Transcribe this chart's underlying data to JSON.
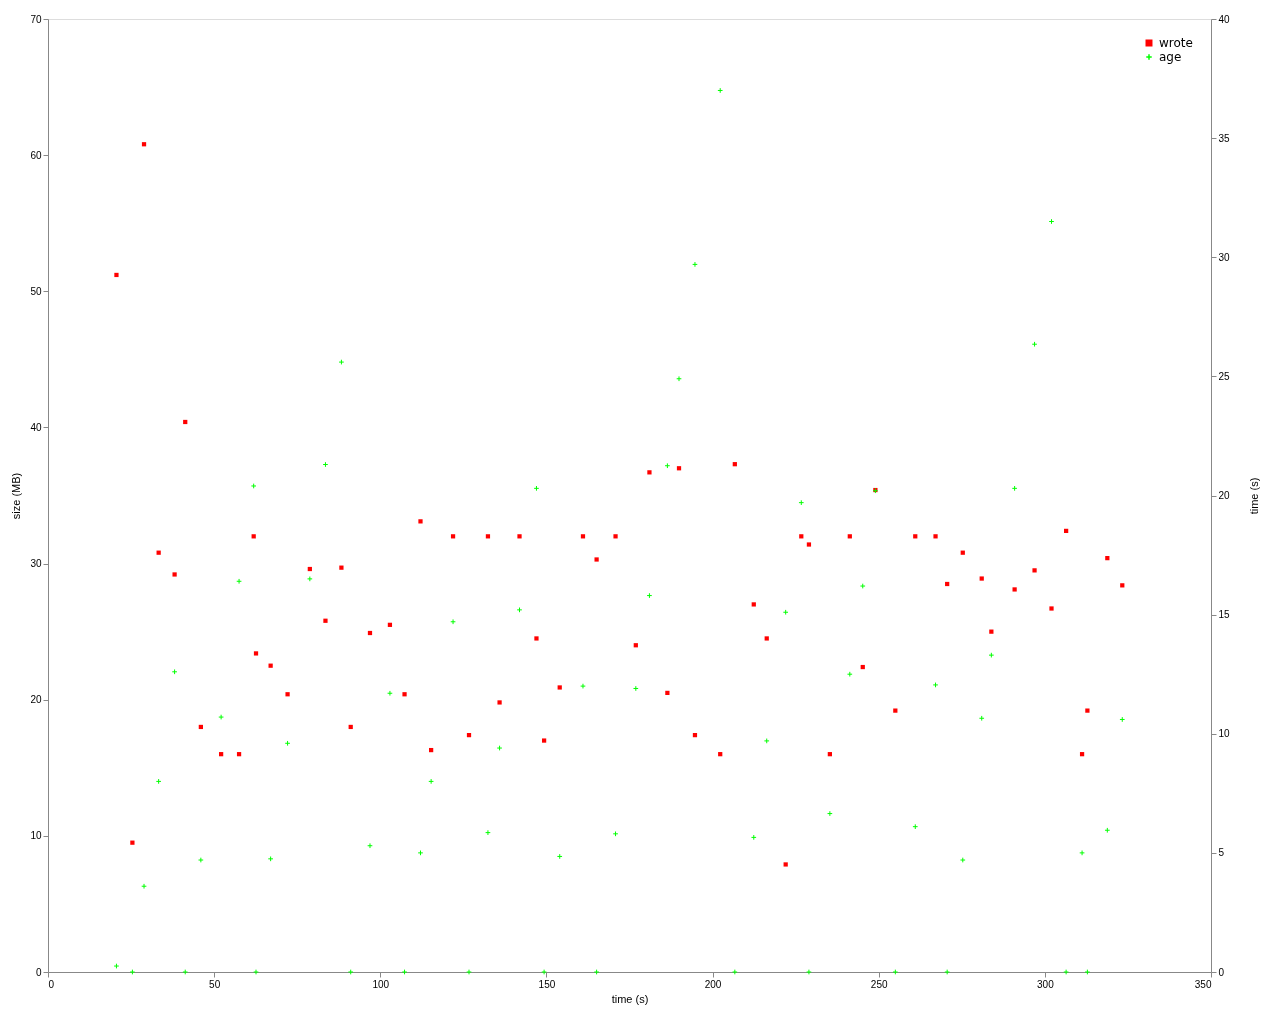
{
  "chart_data": {
    "type": "scatter",
    "xlabel": "time (s)",
    "ylabel": "size (MB)",
    "y2label": "time (s)",
    "x": [
      20.6,
      25.4,
      28.9,
      33.3,
      38.1,
      41.3,
      46.0,
      52.1,
      57.5,
      61.9,
      62.6,
      67.0,
      72.1,
      78.8,
      83.5,
      88.3,
      91.1,
      96.9,
      102.9,
      107.3,
      112.1,
      115.3,
      121.9,
      126.7,
      132.4,
      135.9,
      141.9,
      147.0,
      149.3,
      154.0,
      161.0,
      165.1,
      170.8,
      176.9,
      181.0,
      186.4,
      189.9,
      194.7,
      202.3,
      206.7,
      212.4,
      216.3,
      222.0,
      226.7,
      229.0,
      235.3,
      241.3,
      245.2,
      249.0,
      255.0,
      261.0,
      267.1,
      270.6,
      275.3,
      281.0,
      283.9,
      290.9,
      296.9,
      302.0,
      306.4,
      311.2,
      312.8,
      318.8,
      323.3
    ],
    "series": [
      {
        "name": "wrote",
        "color": "#ff0000",
        "marker": "square",
        "values": [
          51.2,
          9.5,
          60.8,
          30.8,
          29.2,
          40.4,
          18.0,
          16.0,
          16.0,
          32.0,
          23.4,
          22.5,
          20.4,
          29.6,
          25.8,
          29.7,
          18.0,
          24.9,
          25.5,
          20.4,
          33.1,
          16.3,
          32.0,
          17.4,
          32.0,
          19.8,
          32.0,
          24.5,
          17.0,
          20.9,
          32.0,
          30.3,
          32.0,
          24.0,
          36.7,
          20.5,
          37.0,
          17.4,
          16.0,
          37.3,
          27.0,
          24.5,
          7.9,
          32.0,
          31.4,
          16.0,
          32.0,
          22.4,
          35.4,
          19.2,
          32.0,
          32.0,
          28.5,
          30.8,
          28.9,
          25.0,
          28.1,
          29.5,
          26.7,
          32.4,
          16.0,
          19.2,
          30.4,
          28.4
        ]
      },
      {
        "name": "age",
        "color": "#00ff00",
        "marker": "cross",
        "axis": "y2",
        "values": [
          0.25,
          0,
          3.6,
          8.0,
          12.6,
          0,
          4.7,
          10.7,
          16.4,
          20.4,
          0,
          4.75,
          9.6,
          16.5,
          21.3,
          25.6,
          0,
          5.3,
          11.7,
          0,
          5.0,
          8.0,
          14.7,
          0,
          5.85,
          9.4,
          15.2,
          20.3,
          0,
          4.85,
          12.0,
          0,
          5.8,
          11.9,
          15.8,
          21.25,
          24.9,
          29.7,
          37.0,
          0,
          5.65,
          9.7,
          15.1,
          19.7,
          0,
          6.65,
          12.5,
          16.2,
          20.2,
          0,
          6.1,
          12.05,
          0,
          4.7,
          10.65,
          13.3,
          20.3,
          26.35,
          31.5,
          0,
          5.0,
          0,
          5.95,
          10.6
        ]
      }
    ],
    "xlim": [
      0,
      350
    ],
    "xticks": [
      0,
      50,
      100,
      150,
      200,
      250,
      300,
      350
    ],
    "ylim": [
      0,
      70
    ],
    "yticks": [
      0,
      10,
      20,
      30,
      40,
      50,
      60,
      70
    ],
    "y2lim": [
      0,
      40
    ],
    "y2ticks": [
      0,
      5,
      10,
      15,
      20,
      25,
      30,
      35,
      40
    ],
    "grid": false,
    "legend": "top right"
  }
}
